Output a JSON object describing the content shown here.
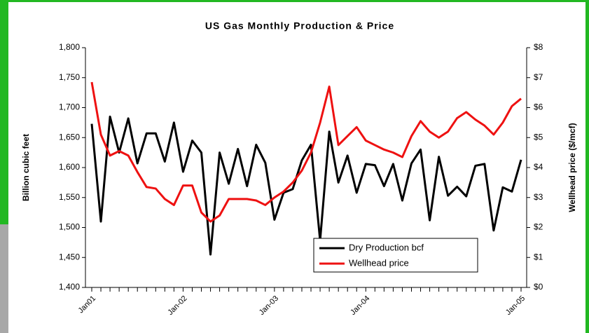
{
  "chart_data": {
    "type": "line",
    "title": "US Gas Monthly Production & Price",
    "ylabel": "Billion cubic feet",
    "y2label": "Wellhead price ($/mcf)",
    "categories": [
      "Jan01",
      null,
      null,
      null,
      null,
      null,
      null,
      null,
      null,
      null,
      "Jan-02",
      null,
      null,
      null,
      null,
      null,
      null,
      null,
      null,
      null,
      "Jan-03",
      null,
      null,
      null,
      null,
      null,
      null,
      null,
      null,
      null,
      "Jan-04",
      null,
      null,
      null,
      null,
      null,
      null,
      null,
      null,
      null,
      null,
      null,
      null,
      null,
      null,
      null,
      null,
      "Jan-05"
    ],
    "series": [
      {
        "name": "Dry Production bcf",
        "color": "#000000",
        "values": [
          1673,
          1510,
          1685,
          1625,
          1682,
          1607,
          1657,
          1657,
          1610,
          1675,
          1593,
          1645,
          1625,
          1455,
          1625,
          1573,
          1631,
          1569,
          1638,
          1608,
          1513,
          1558,
          1564,
          1612,
          1638,
          1478,
          1660,
          1575,
          1620,
          1558,
          1606,
          1604,
          1569,
          1606,
          1545,
          1607,
          1630,
          1512,
          1618,
          1553,
          1568,
          1552,
          1603,
          1606,
          1495,
          1567,
          1560,
          1613
        ]
      },
      {
        "name": "Wellhead price",
        "color": "#ee1111",
        "axis": "y2",
        "values": [
          6.85,
          5.1,
          4.4,
          4.55,
          4.4,
          3.85,
          3.35,
          3.3,
          2.95,
          2.75,
          3.4,
          3.4,
          2.5,
          2.2,
          2.4,
          2.95,
          2.95,
          2.95,
          2.9,
          2.75,
          3.0,
          3.2,
          3.5,
          3.9,
          4.5,
          5.5,
          6.7,
          4.75,
          5.05,
          5.35,
          4.9,
          4.75,
          4.6,
          4.5,
          4.35,
          5.05,
          5.55,
          5.2,
          5.0,
          5.2,
          5.65,
          5.85,
          5.6,
          5.4,
          5.1,
          5.5,
          6.05,
          6.3
        ]
      }
    ],
    "ylim": [
      1400,
      1800
    ],
    "yticks": [
      {
        "value": 1400,
        "label": "1,400"
      },
      {
        "value": 1450,
        "label": "1,450"
      },
      {
        "value": 1500,
        "label": "1,500"
      },
      {
        "value": 1550,
        "label": "1,550"
      },
      {
        "value": 1600,
        "label": "1,600"
      },
      {
        "value": 1650,
        "label": "1,650"
      },
      {
        "value": 1700,
        "label": "1,700"
      },
      {
        "value": 1750,
        "label": "1,750"
      },
      {
        "value": 1800,
        "label": "1,800"
      }
    ],
    "y2lim": [
      0,
      8
    ],
    "y2ticks": [
      {
        "value": 0,
        "label": "$0"
      },
      {
        "value": 1,
        "label": "$1"
      },
      {
        "value": 2,
        "label": "$2"
      },
      {
        "value": 3,
        "label": "$3"
      },
      {
        "value": 4,
        "label": "$4"
      },
      {
        "value": 5,
        "label": "$5"
      },
      {
        "value": 6,
        "label": "$6"
      },
      {
        "value": 7,
        "label": "$7"
      },
      {
        "value": 8,
        "label": "$8"
      }
    ],
    "grid": false,
    "legend": "lower-right"
  }
}
